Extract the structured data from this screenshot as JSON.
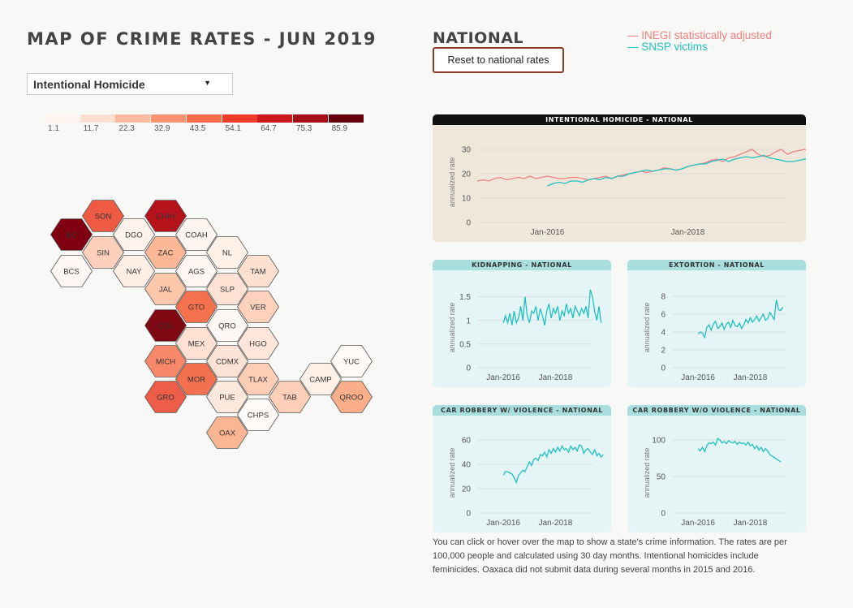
{
  "page_title": "MAP OF CRIME RATES - JUN 2019",
  "crime_select": {
    "value": "Intentional Homicide"
  },
  "legend": {
    "labels": [
      "1.1",
      "11.7",
      "22.3",
      "32.9",
      "43.5",
      "54.1",
      "64.7",
      "75.3",
      "85.9"
    ],
    "colors": [
      "#fff5f0",
      "#fee0d2",
      "#fcbba1",
      "#fc9272",
      "#fb6a4a",
      "#ef3b2c",
      "#cb181d",
      "#a50f15",
      "#67000d"
    ]
  },
  "map": {
    "states": [
      {
        "abbr": "SON",
        "fill": "#ef5a44"
      },
      {
        "abbr": "CHIH",
        "fill": "#b5121b"
      },
      {
        "abbr": "BC",
        "fill": "#7f0010"
      },
      {
        "abbr": "DGO",
        "fill": "#fff3ec"
      },
      {
        "abbr": "COAH",
        "fill": "#fff5f0"
      },
      {
        "abbr": "SIN",
        "fill": "#fdd0bb"
      },
      {
        "abbr": "ZAC",
        "fill": "#fcb896"
      },
      {
        "abbr": "NL",
        "fill": "#fff0e8"
      },
      {
        "abbr": "BCS",
        "fill": "#fff7f3"
      },
      {
        "abbr": "NAY",
        "fill": "#ffeee5"
      },
      {
        "abbr": "AGS",
        "fill": "#fff6f2"
      },
      {
        "abbr": "TAM",
        "fill": "#fde0d0"
      },
      {
        "abbr": "JAL",
        "fill": "#fdc7ac"
      },
      {
        "abbr": "SLP",
        "fill": "#fee2d4"
      },
      {
        "abbr": "GTO",
        "fill": "#f6724f"
      },
      {
        "abbr": "VER",
        "fill": "#fdd2bd"
      },
      {
        "abbr": "COL",
        "fill": "#800812"
      },
      {
        "abbr": "QRO",
        "fill": "#fff9f6"
      },
      {
        "abbr": "MEX",
        "fill": "#fee1d3"
      },
      {
        "abbr": "HGO",
        "fill": "#fee6da"
      },
      {
        "abbr": "MICH",
        "fill": "#f8886a"
      },
      {
        "abbr": "CDMX",
        "fill": "#fde3d6"
      },
      {
        "abbr": "YUC",
        "fill": "#fffaf7"
      },
      {
        "abbr": "MOR",
        "fill": "#f3714f"
      },
      {
        "abbr": "TLAX",
        "fill": "#fdcdb6"
      },
      {
        "abbr": "CAMP",
        "fill": "#fff0e8"
      },
      {
        "abbr": "GRO",
        "fill": "#ee5d47"
      },
      {
        "abbr": "PUE",
        "fill": "#fde8dc"
      },
      {
        "abbr": "TAB",
        "fill": "#fdcfb8"
      },
      {
        "abbr": "QROO",
        "fill": "#fbae8a"
      },
      {
        "abbr": "CHPS",
        "fill": "#fffbf9"
      },
      {
        "abbr": "OAX",
        "fill": "#fbb592"
      }
    ]
  },
  "national": {
    "title": "NATIONAL",
    "reset_label": "Reset to national rates",
    "series_legend": [
      {
        "label": "INEGI statistically adjusted",
        "color": "#f08080"
      },
      {
        "label": "SNSP victims",
        "color": "#20c0c0"
      }
    ]
  },
  "chart_data": [
    {
      "type": "line",
      "title": "INTENTIONAL HOMICIDE - NATIONAL",
      "ylabel": "annualized rate",
      "x_ticks": [
        "Jan-2016",
        "Jan-2018"
      ],
      "x_range": [
        "2015-01",
        "2019-06"
      ],
      "ylim": [
        0,
        33
      ],
      "yticks": [
        0,
        10,
        20,
        30
      ],
      "panel_bg": "#efe8da",
      "header_bg": "#111111",
      "header_color": "#ffffff",
      "series": [
        {
          "color": "#f08080",
          "x_start": "2015-01",
          "values": [
            17,
            17.5,
            17,
            18,
            18.5,
            17.5,
            18,
            18.5,
            18,
            19,
            18,
            18.5,
            19,
            18.5,
            18,
            18,
            18.5,
            18.5,
            18,
            17.5,
            18,
            18.5,
            19,
            18,
            19,
            19.5,
            20,
            20.5,
            21,
            20.5,
            21,
            21.5,
            22.5,
            22,
            21.5,
            22,
            23,
            23.5,
            24,
            24.5,
            25.5,
            26,
            25,
            26.5,
            27,
            28,
            29,
            30,
            28,
            27,
            27.5,
            29,
            30,
            28,
            29,
            29.5,
            30,
            29.5,
            28,
            27
          ]
        },
        {
          "color": "#20c0c0",
          "x_start": "2016-01",
          "values": [
            15,
            16,
            16.5,
            16,
            17,
            17,
            16.5,
            17.5,
            18,
            17.5,
            18.5,
            18,
            19,
            19,
            20,
            20.5,
            21,
            21.5,
            21,
            21.5,
            22,
            22,
            21.5,
            22,
            23,
            23.5,
            24,
            24,
            25,
            25.5,
            26,
            25,
            26,
            26.5,
            27,
            26.5,
            27,
            27.5,
            26.5,
            26,
            25.5,
            25,
            25,
            25.5,
            26,
            26.5,
            27,
            27,
            27.5,
            28,
            28,
            27.5,
            28.5,
            29,
            28,
            28,
            29,
            29.5,
            28,
            28,
            28.5,
            29,
            29.5,
            28.5,
            28,
            29,
            29,
            29.5,
            29,
            28.5,
            28,
            28,
            29,
            30,
            29.5,
            29,
            28.5,
            27.5,
            28,
            28.5,
            29,
            30
          ]
        }
      ]
    },
    {
      "type": "line",
      "title": "KIDNAPPING - NATIONAL",
      "ylabel": "annualized rate",
      "x_ticks": [
        "Jan-2016",
        "Jan-2018"
      ],
      "x_range": [
        "2015-01",
        "2019-06"
      ],
      "ylim": [
        0,
        1.7
      ],
      "yticks": [
        0,
        0.5,
        1,
        1.5
      ],
      "panel_bg": "#e5f5f5",
      "header_bg": "#a9dede",
      "header_color": "#333333",
      "series": [
        {
          "color": "#20c0c0",
          "x_start": "2016-01",
          "values": [
            0.95,
            1.1,
            0.95,
            1.15,
            0.9,
            1.2,
            0.95,
            1.05,
            1.3,
            1.0,
            1.5,
            1.1,
            0.95,
            1.2,
            1.15,
            1.3,
            1.0,
            1.25,
            1.1,
            0.9,
            1.2,
            1.35,
            1.05,
            1.25,
            1.15,
            1.3,
            1.0,
            1.2,
            1.1,
            1.35,
            1.15,
            1.25,
            1.05,
            1.3,
            1.2,
            1.1,
            1.25,
            1.15,
            1.3,
            1.05,
            1.65,
            1.5,
            1.2,
            1.0,
            1.3,
            0.95
          ]
        }
      ]
    },
    {
      "type": "line",
      "title": "EXTORTION - NATIONAL",
      "ylabel": "annualized rate",
      "x_ticks": [
        "Jan-2016",
        "Jan-2018"
      ],
      "x_range": [
        "2015-01",
        "2019-06"
      ],
      "ylim": [
        0,
        9
      ],
      "yticks": [
        0,
        2,
        4,
        6,
        8
      ],
      "panel_bg": "#e5f5f5",
      "header_bg": "#a9dede",
      "header_color": "#333333",
      "series": [
        {
          "color": "#20c0c0",
          "x_start": "2016-01",
          "values": [
            3.8,
            4.0,
            3.9,
            3.4,
            4.5,
            4.8,
            4.2,
            4.9,
            5.2,
            4.4,
            4.6,
            5.0,
            4.3,
            4.9,
            5.1,
            4.5,
            5.3,
            4.7,
            4.6,
            5.0,
            4.4,
            4.8,
            5.4,
            5.0,
            5.6,
            5.1,
            5.4,
            5.8,
            5.2,
            5.6,
            6.0,
            5.3,
            5.5,
            6.2,
            5.8,
            5.4,
            7.6,
            6.5,
            6.4,
            6.8
          ]
        }
      ]
    },
    {
      "type": "line",
      "title": "CAR ROBBERY W/ VIOLENCE - NATIONAL",
      "ylabel": "annualized rate",
      "x_ticks": [
        "Jan-2016",
        "Jan-2018"
      ],
      "x_range": [
        "2015-01",
        "2019-06"
      ],
      "ylim": [
        0,
        66
      ],
      "yticks": [
        0,
        20,
        40,
        60
      ],
      "panel_bg": "#e5f5f5",
      "header_bg": "#a9dede",
      "header_color": "#333333",
      "series": [
        {
          "color": "#20c0c0",
          "x_start": "2016-01",
          "values": [
            31,
            34,
            34,
            33,
            32,
            29,
            25,
            31,
            33,
            35,
            34,
            38,
            42,
            39,
            44,
            45,
            43,
            48,
            47,
            50,
            46,
            52,
            49,
            53,
            50,
            54,
            51,
            55,
            52,
            53,
            50,
            55,
            52,
            54,
            51,
            56,
            55,
            49,
            52,
            53,
            50,
            48,
            52,
            47,
            49,
            46,
            48
          ]
        }
      ]
    },
    {
      "type": "line",
      "title": "CAR ROBBERY W/O VIOLENCE - NATIONAL",
      "ylabel": "annualized rate",
      "x_ticks": [
        "Jan-2016",
        "Jan-2018"
      ],
      "x_range": [
        "2015-01",
        "2019-06"
      ],
      "ylim": [
        0,
        110
      ],
      "yticks": [
        0,
        50,
        100
      ],
      "panel_bg": "#e5f5f5",
      "header_bg": "#a9dede",
      "header_color": "#333333",
      "series": [
        {
          "color": "#20c0c0",
          "x_start": "2016-01",
          "values": [
            88,
            85,
            90,
            84,
            92,
            96,
            95,
            97,
            93,
            102,
            100,
            96,
            98,
            95,
            99,
            97,
            96,
            98,
            94,
            97,
            95,
            96,
            93,
            97,
            92,
            94,
            88,
            92,
            86,
            90,
            84,
            88,
            85,
            80,
            78,
            76,
            74,
            72,
            70
          ]
        }
      ]
    }
  ],
  "note": "You can click or hover over the map to show a state's crime information. The rates are per 100,000 people and calculated using 30 day months. Intentional homicides include feminicides. Oaxaca did not submit data during several months in 2015 and 2016."
}
